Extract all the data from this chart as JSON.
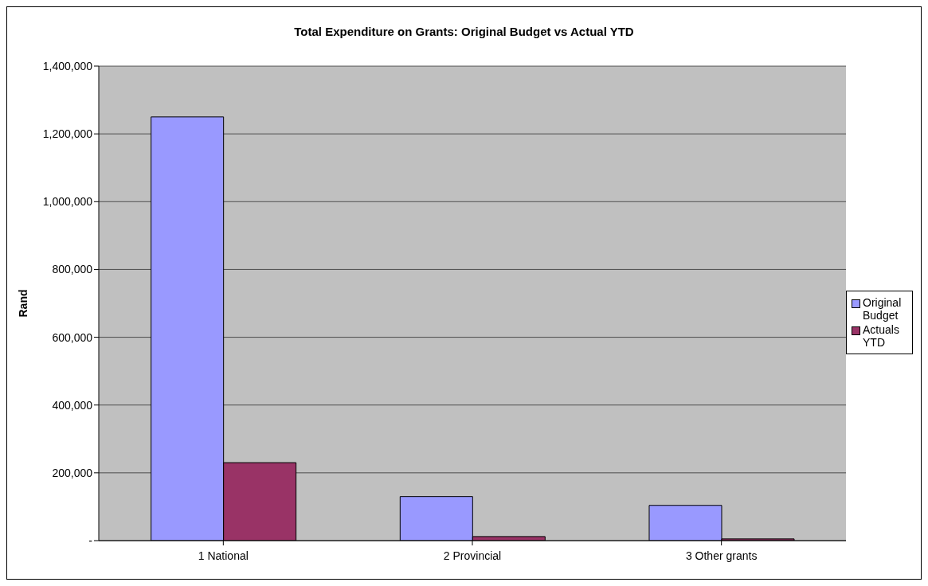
{
  "chart_data": {
    "type": "bar",
    "title": "Total Expenditure on Grants: Original Budget vs Actual YTD",
    "ylabel": "Rand",
    "categories": [
      "1 National",
      "2 Provincial",
      "3 Other grants"
    ],
    "series": [
      {
        "name": "Original Budget",
        "color": "#9999ff",
        "values": [
          1250000,
          130000,
          104000
        ]
      },
      {
        "name": "Actuals YTD",
        "color": "#993366",
        "values": [
          230000,
          12000,
          5000
        ]
      }
    ],
    "ylim": [
      0,
      1400000
    ],
    "yticks": [
      {
        "value": 0,
        "label": "-"
      },
      {
        "value": 200000,
        "label": "200,000"
      },
      {
        "value": 400000,
        "label": "400,000"
      },
      {
        "value": 600000,
        "label": "600,000"
      },
      {
        "value": 800000,
        "label": "800,000"
      },
      {
        "value": 1000000,
        "label": "1,000,000"
      },
      {
        "value": 1200000,
        "label": "1,200,000"
      },
      {
        "value": 1400000,
        "label": "1,400,000"
      }
    ],
    "grid": "y",
    "legend": "right"
  }
}
